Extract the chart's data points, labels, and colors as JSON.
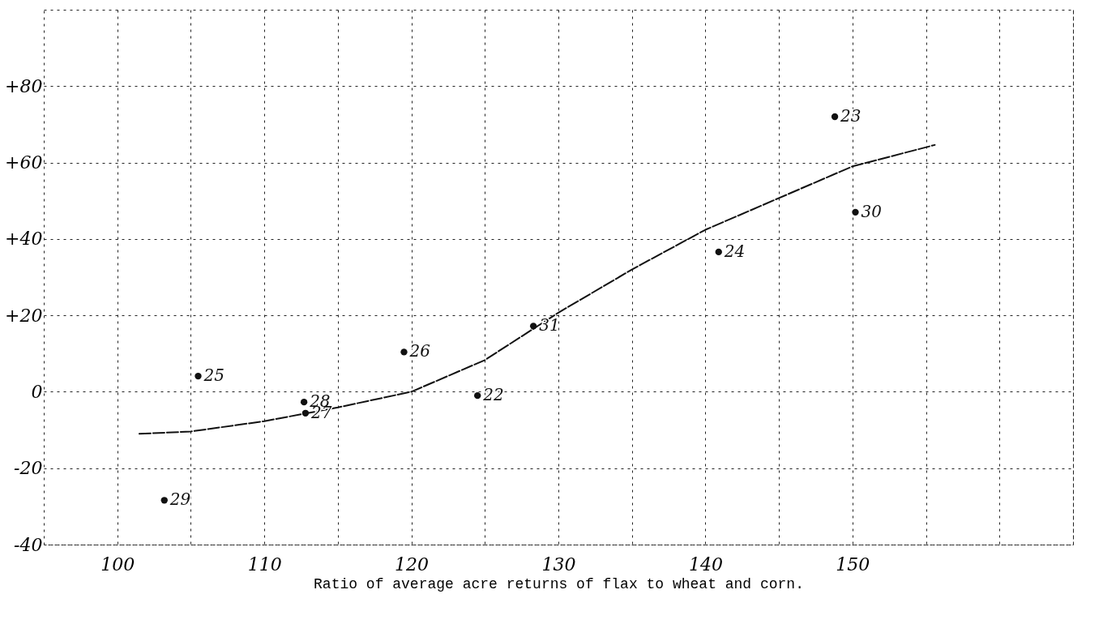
{
  "chart_data": {
    "type": "scatter",
    "xlabel": "Ratio of average acre returns of flax to wheat and corn.",
    "xlim": [
      95,
      165
    ],
    "ylim": [
      -40,
      100
    ],
    "xticks": [
      100,
      {
        "value": 105,
        "label": null
      },
      110,
      {
        "value": 115,
        "label": null
      },
      120,
      {
        "value": 125,
        "label": null
      },
      130,
      {
        "value": 135,
        "label": null
      },
      140,
      {
        "value": 145,
        "label": null
      },
      150,
      {
        "value": 155,
        "label": null
      },
      {
        "value": 160,
        "label": null
      },
      {
        "value": 165,
        "label": null
      }
    ],
    "yticks": [
      {
        "value": -40,
        "label": "-40"
      },
      {
        "value": -20,
        "label": "-20"
      },
      0,
      {
        "value": 20,
        "label": "+20"
      },
      {
        "value": 40,
        "label": "+40"
      },
      {
        "value": 60,
        "label": "+60"
      },
      {
        "value": 80,
        "label": "+80"
      }
    ],
    "grid": true,
    "series": [
      {
        "marker": "circle",
        "color": "#111111",
        "x": [
          148.8,
          150.2,
          140.9,
          128.3,
          119.5,
          105.5,
          112.7,
          112.8,
          124.5,
          103.2
        ],
        "values": [
          72,
          47,
          36.6,
          17.2,
          10.4,
          4.1,
          -2.7,
          -5.6,
          -1,
          -28.4
        ]
      },
      {
        "type": "line",
        "color": "#111111",
        "line_style": "dashed",
        "x": [
          101.5,
          105,
          110,
          115,
          120,
          125,
          130,
          135,
          140,
          145,
          150,
          155.6
        ],
        "values": [
          -11,
          -10.4,
          -7.7,
          -4.1,
          0,
          8.3,
          20.7,
          32,
          42.4,
          50.7,
          59,
          64.6
        ]
      }
    ],
    "annotations": [
      {
        "text": "23",
        "x": 148.8,
        "y": 72
      },
      {
        "text": "30",
        "x": 150.2,
        "y": 47
      },
      {
        "text": "24",
        "x": 140.9,
        "y": 36.6
      },
      {
        "text": "31",
        "x": 128.3,
        "y": 17.2
      },
      {
        "text": "26",
        "x": 119.5,
        "y": 10.4
      },
      {
        "text": "25",
        "x": 105.5,
        "y": 4.1
      },
      {
        "text": "28",
        "x": 112.7,
        "y": -2.7
      },
      {
        "text": "27",
        "x": 112.8,
        "y": -5.6
      },
      {
        "text": "22",
        "x": 124.5,
        "y": -1
      },
      {
        "text": "29",
        "x": 103.2,
        "y": -28.4
      }
    ]
  }
}
